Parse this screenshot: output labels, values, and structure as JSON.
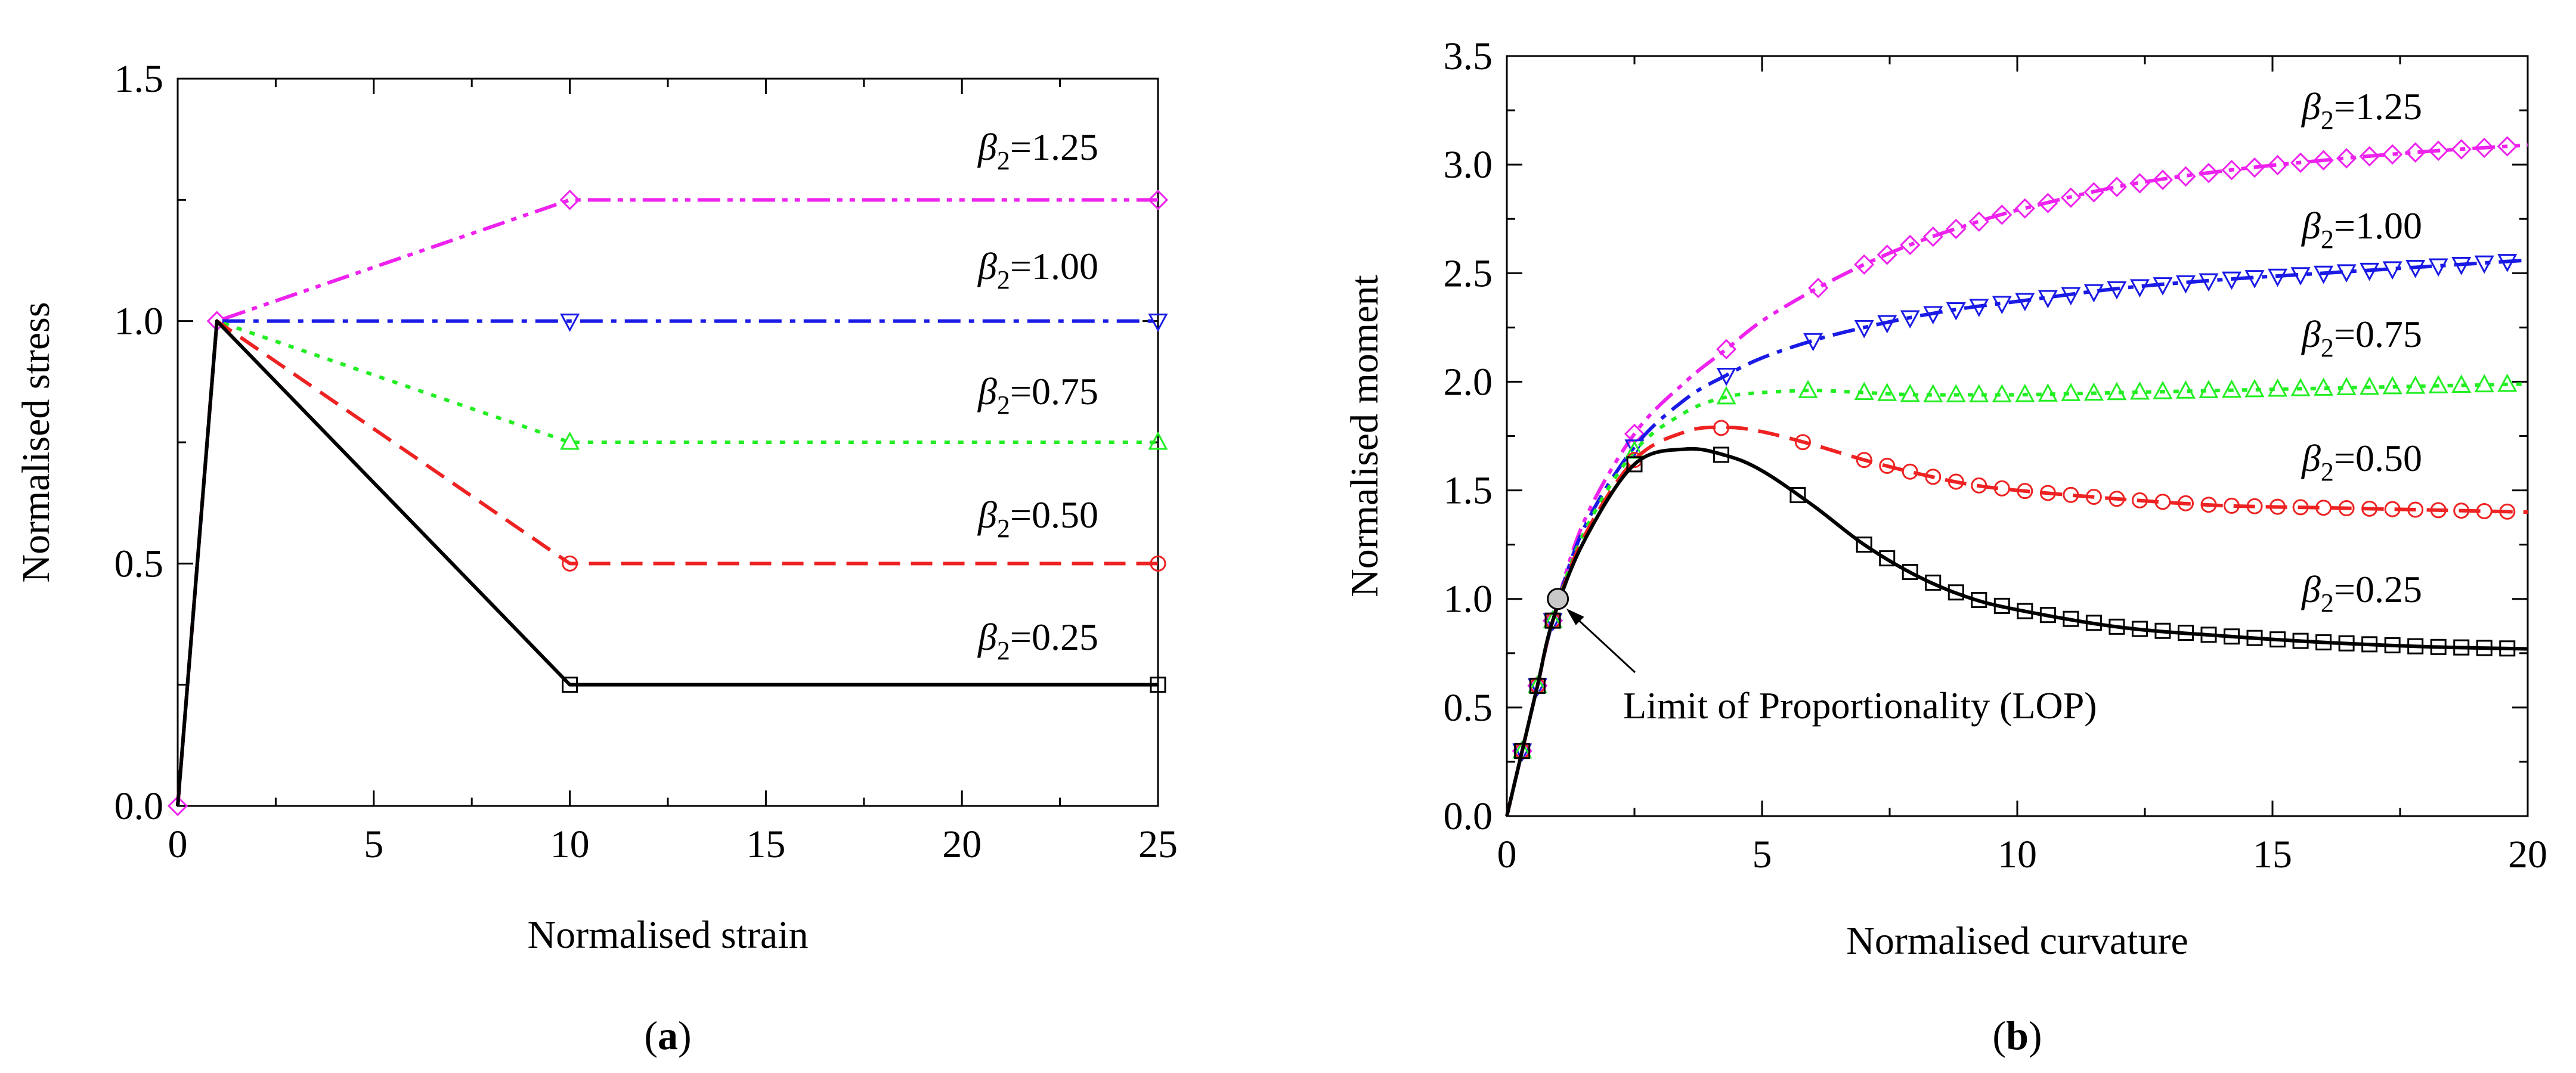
{
  "colors": {
    "beta_0.25": "#000000",
    "beta_0.50": "#ee2222",
    "beta_0.75": "#22ee22",
    "beta_1.00": "#1a1ae6",
    "beta_1.25": "#ee22ee",
    "lop_marker": "#c8c8c8"
  },
  "chart_data": [
    {
      "id": "a",
      "type": "line",
      "caption": {
        "open": "(",
        "letter": "a",
        "close": ")"
      },
      "xlabel": "Normalised strain",
      "ylabel": "Normalised stress",
      "xlim": [
        0,
        25
      ],
      "ylim": [
        0,
        1.5
      ],
      "xticks": [
        "0",
        "5",
        "10",
        "15",
        "20",
        "25"
      ],
      "yticks": [
        "0.0",
        "0.5",
        "1.0",
        "1.5"
      ],
      "series": [
        {
          "key": "beta_1.25",
          "symbol": "β",
          "sub": "2",
          "value": "=1.25",
          "marker": "diamond",
          "dash": "dashdotdot",
          "x": [
            0,
            1,
            10,
            25
          ],
          "y": [
            0,
            1,
            1.25,
            1.25
          ],
          "marker_x": [
            0,
            1,
            10,
            25
          ],
          "marker_y": [
            0,
            1,
            1.25,
            1.25
          ]
        },
        {
          "key": "beta_1.00",
          "symbol": "β",
          "sub": "2",
          "value": "=1.00",
          "marker": "tri-down",
          "dash": "dashdot",
          "x": [
            0,
            1,
            10,
            25
          ],
          "y": [
            0,
            1,
            1.0,
            1.0
          ],
          "marker_x": [
            10,
            25
          ],
          "marker_y": [
            1.0,
            1.0
          ]
        },
        {
          "key": "beta_0.75",
          "symbol": "β",
          "sub": "2",
          "value": "=0.75",
          "marker": "tri-up",
          "dash": "dotted",
          "x": [
            0,
            1,
            10,
            25
          ],
          "y": [
            0,
            1,
            0.75,
            0.75
          ],
          "marker_x": [
            10,
            25
          ],
          "marker_y": [
            0.75,
            0.75
          ]
        },
        {
          "key": "beta_0.50",
          "symbol": "β",
          "sub": "2",
          "value": "=0.50",
          "marker": "circle",
          "dash": "dashed",
          "x": [
            0,
            1,
            10,
            25
          ],
          "y": [
            0,
            1,
            0.5,
            0.5
          ],
          "marker_x": [
            10,
            25
          ],
          "marker_y": [
            0.5,
            0.5
          ]
        },
        {
          "key": "beta_0.25",
          "symbol": "β",
          "sub": "2",
          "value": "=0.25",
          "marker": "square",
          "dash": "solid",
          "x": [
            0,
            1,
            10,
            25
          ],
          "y": [
            0,
            1,
            0.25,
            0.25
          ],
          "marker_x": [
            10,
            25
          ],
          "marker_y": [
            0.25,
            0.25
          ]
        }
      ]
    },
    {
      "id": "b",
      "type": "line",
      "caption": {
        "open": "(",
        "letter": "b",
        "close": ")"
      },
      "xlabel": "Normalised curvature",
      "ylabel": "Normalised moment",
      "xlim": [
        0,
        20
      ],
      "ylim": [
        0,
        3.5
      ],
      "xticks": [
        "0",
        "5",
        "10",
        "15",
        "20"
      ],
      "yticks": [
        "0.0",
        "0.5",
        "1.0",
        "1.5",
        "2.0",
        "2.5",
        "3.0",
        "3.5"
      ],
      "annotation": {
        "text": "Limit of Proportionality (LOP)",
        "point": [
          1,
          1
        ]
      },
      "series": [
        {
          "key": "beta_1.25",
          "symbol": "β",
          "sub": "2",
          "value": "=1.25",
          "marker": "diamond",
          "dash": "dashdotdot",
          "x": [
            0,
            0.3,
            0.6,
            0.9,
            1.5,
            2.5,
            3.5,
            4.3,
            5,
            6,
            7,
            8,
            9,
            10,
            12,
            14,
            16,
            18,
            20
          ],
          "y": [
            0,
            0.3,
            0.6,
            0.9,
            1.35,
            1.76,
            2.0,
            2.15,
            2.28,
            2.42,
            2.54,
            2.64,
            2.72,
            2.79,
            2.9,
            2.97,
            3.02,
            3.06,
            3.09
          ]
        },
        {
          "key": "beta_1.00",
          "symbol": "β",
          "sub": "2",
          "value": "=1.00",
          "marker": "tri-down",
          "dash": "dashdot",
          "x": [
            0,
            0.3,
            0.6,
            0.9,
            1.5,
            2.5,
            3.5,
            4.3,
            5,
            6,
            7,
            8,
            9,
            10,
            12,
            14,
            16,
            18,
            20
          ],
          "y": [
            0,
            0.3,
            0.6,
            0.9,
            1.32,
            1.7,
            1.92,
            2.03,
            2.11,
            2.19,
            2.25,
            2.3,
            2.34,
            2.37,
            2.43,
            2.47,
            2.5,
            2.53,
            2.56
          ]
        },
        {
          "key": "beta_0.75",
          "symbol": "β",
          "sub": "2",
          "value": "=0.75",
          "marker": "tri-up",
          "dash": "dotted",
          "x": [
            0,
            0.3,
            0.6,
            0.9,
            1.5,
            2.5,
            3.5,
            4.3,
            5,
            6,
            7,
            8,
            9,
            10,
            12,
            14,
            16,
            18,
            20
          ],
          "y": [
            0,
            0.3,
            0.6,
            0.9,
            1.3,
            1.68,
            1.86,
            1.93,
            1.95,
            1.96,
            1.95,
            1.94,
            1.94,
            1.94,
            1.95,
            1.96,
            1.97,
            1.98,
            1.99
          ]
        },
        {
          "key": "beta_0.50",
          "symbol": "β",
          "sub": "2",
          "value": "=0.50",
          "marker": "circle",
          "dash": "dashed",
          "x": [
            0,
            0.3,
            0.6,
            0.9,
            1.5,
            2.5,
            3.5,
            4.3,
            5,
            6,
            7,
            8,
            9,
            10,
            12,
            14,
            16,
            18,
            20
          ],
          "y": [
            0,
            0.3,
            0.6,
            0.9,
            1.28,
            1.64,
            1.77,
            1.79,
            1.77,
            1.71,
            1.64,
            1.58,
            1.53,
            1.5,
            1.46,
            1.43,
            1.42,
            1.41,
            1.4
          ]
        },
        {
          "key": "beta_0.25",
          "symbol": "β",
          "sub": "2",
          "value": "=0.25",
          "marker": "square",
          "dash": "solid",
          "x": [
            0,
            0.3,
            0.6,
            0.9,
            1.5,
            2.5,
            3.5,
            4.3,
            5,
            6,
            7,
            8,
            9,
            10,
            12,
            14,
            16,
            18,
            20
          ],
          "y": [
            0,
            0.3,
            0.6,
            0.9,
            1.26,
            1.62,
            1.69,
            1.66,
            1.59,
            1.43,
            1.25,
            1.11,
            1.01,
            0.95,
            0.87,
            0.83,
            0.8,
            0.78,
            0.77
          ]
        }
      ]
    }
  ]
}
